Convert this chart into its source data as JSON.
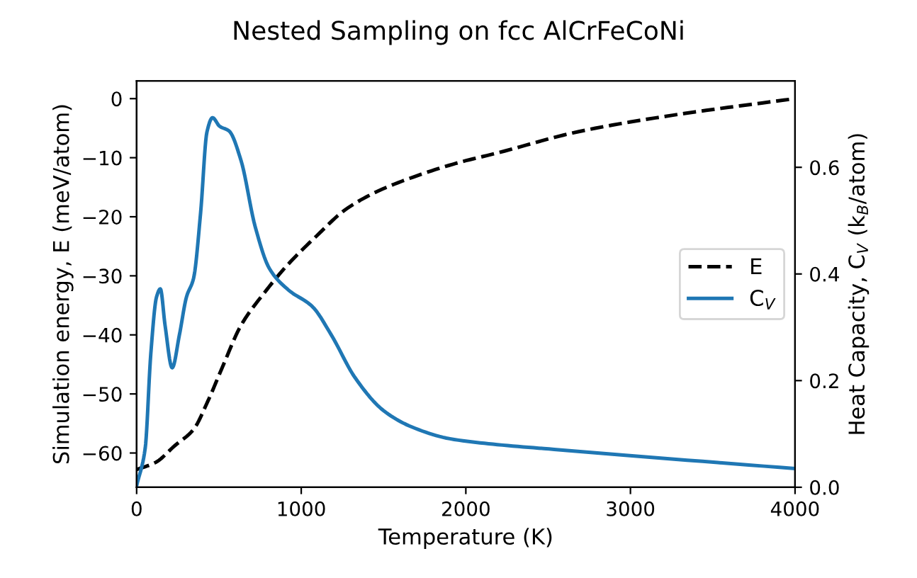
{
  "chart_data": {
    "type": "line",
    "title": "Nested Sampling on fcc AlCrFeCoNi",
    "xlabel": "Temperature (K)",
    "ylabel": "Simulation energy, E (meV/atom)",
    "y2label": "Heat Capacity, C$_{V}$ (k$_{B}$/atom)",
    "xlim": [
      0,
      4000
    ],
    "xticks": [
      0,
      1000,
      2000,
      3000,
      4000
    ],
    "ylim": [
      -65.8,
      3.0
    ],
    "yticks": [
      {
        "value": -60,
        "label": "−60"
      },
      {
        "value": -50,
        "label": "−50"
      },
      {
        "value": -40,
        "label": "−40"
      },
      {
        "value": -30,
        "label": "−30"
      },
      {
        "value": -20,
        "label": "−20"
      },
      {
        "value": -10,
        "label": "−10"
      },
      0
    ],
    "y2lim": [
      0,
      0.762
    ],
    "y2ticks": [
      {
        "value": 0,
        "label": "0.0"
      },
      0.2,
      0.4,
      0.6
    ],
    "legend": "right",
    "grid": false,
    "series": [
      {
        "name": "E",
        "color": "#000000",
        "line_style": "dashed",
        "x": [
          0,
          115,
          230,
          346,
          433,
          519,
          634,
          778,
          922,
          1095,
          1268,
          1471,
          1730,
          1960,
          2191,
          2682,
          3258,
          4000
        ],
        "values": [
          -62.8,
          -61.6,
          -58.8,
          -56.0,
          -51.2,
          -45.6,
          -38.4,
          -32.8,
          -28.0,
          -23.2,
          -18.8,
          -15.6,
          -12.8,
          -10.8,
          -9.2,
          -5.6,
          -2.8,
          0
        ]
      },
      {
        "name": "C$_{V}$",
        "color": "#1f77b4",
        "line_style": "solid",
        "axis": "y2",
        "x": [
          0,
          52,
          86,
          121,
          144,
          173,
          216,
          260,
          303,
          346,
          389,
          427,
          461,
          504,
          562,
          634,
          720,
          807,
          922,
          1067,
          1182,
          1326,
          1499,
          1672,
          1903,
          2191,
          2537,
          2970,
          4000
        ],
        "values": [
          0.003,
          0.073,
          0.25,
          0.357,
          0.372,
          0.303,
          0.224,
          0.286,
          0.357,
          0.392,
          0.516,
          0.666,
          0.693,
          0.677,
          0.668,
          0.613,
          0.489,
          0.41,
          0.37,
          0.339,
          0.286,
          0.206,
          0.144,
          0.113,
          0.091,
          0.08,
          0.071,
          0.06,
          0.035
        ]
      }
    ]
  }
}
